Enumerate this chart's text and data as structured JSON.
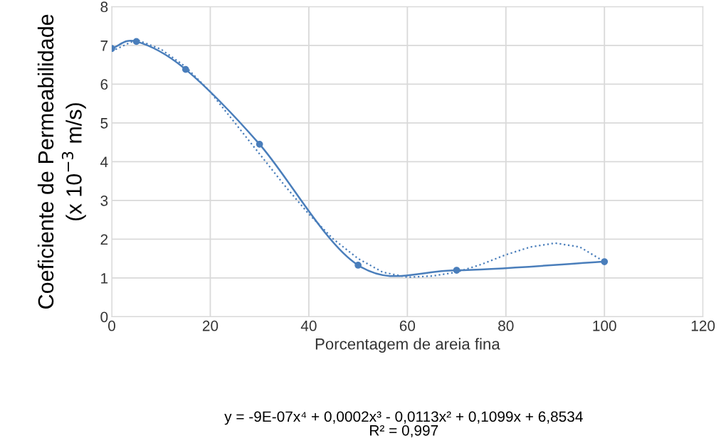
{
  "chart_data": {
    "type": "line",
    "xlabel": "Porcentagem de areia fina",
    "ylabel": "Coeficiente de Permeabilidade\n(x 10$^{−3}$ m/s)",
    "series": [
      {
        "color": "#4a7ebb",
        "marker": "circle",
        "line_style": "solid",
        "x": [
          0,
          5,
          15,
          30,
          50,
          70,
          100
        ],
        "values": [
          6.92,
          7.1,
          6.38,
          4.45,
          1.33,
          1.2,
          1.42
        ]
      },
      {
        "color": "#4a7ebb",
        "marker": "none",
        "line_style": "dotted",
        "x": [
          0,
          5,
          10,
          15,
          20,
          25,
          30,
          35,
          40,
          45,
          50,
          55,
          60,
          65,
          70,
          75,
          80,
          85,
          90,
          95,
          100
        ],
        "values": [
          6.85,
          7.15,
          6.9,
          6.45,
          5.8,
          5.0,
          4.2,
          3.4,
          2.65,
          2.0,
          1.5,
          1.15,
          1.02,
          1.05,
          1.15,
          1.35,
          1.6,
          1.8,
          1.9,
          1.8,
          1.42
        ]
      }
    ],
    "xlim": [
      0,
      120
    ],
    "xticks": [
      0,
      20,
      40,
      60,
      80,
      100,
      120
    ],
    "ylim": [
      0,
      8
    ],
    "yticks": [
      0,
      1,
      2,
      3,
      4,
      5,
      6,
      7,
      8
    ],
    "grid": true,
    "annotations": [
      "y = -9E-07x⁴ + 0,0002x³ - 0,0113x² + 0,1099x + 6,8534\nR² = 0,997"
    ]
  }
}
